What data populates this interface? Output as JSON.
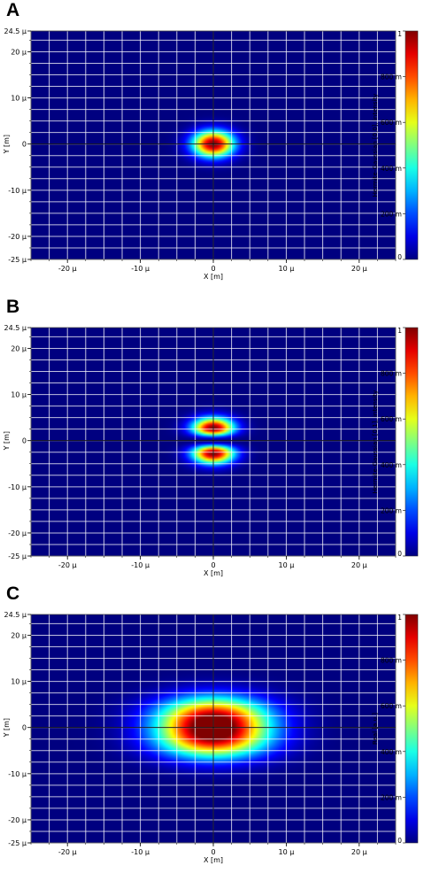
{
  "panels": [
    "A",
    "B",
    "C"
  ],
  "chart_data": [
    {
      "type": "heatmap",
      "panel": "A",
      "mode": "HG00",
      "xlabel": "X [m]",
      "ylabel": "Y [m]",
      "colorbar_label": "Hermite-Gaussian [0,0], intensity",
      "xlim": [
        -25,
        25
      ],
      "ylim": [
        -25,
        24.5
      ],
      "xticks": [
        {
          "v": -20,
          "label": "-20 µ"
        },
        {
          "v": -10,
          "label": "-10 µ"
        },
        {
          "v": 0,
          "label": "0"
        },
        {
          "v": 10,
          "label": "10 µ"
        },
        {
          "v": 20,
          "label": "20 µ"
        }
      ],
      "yticks": [
        {
          "v": 24.5,
          "label": "24.5 µ"
        },
        {
          "v": 20,
          "label": "20 µ"
        },
        {
          "v": 10,
          "label": "10 µ"
        },
        {
          "v": 0,
          "label": "0"
        },
        {
          "v": -10,
          "label": "-10 µ"
        },
        {
          "v": -20,
          "label": "-20 µ"
        },
        {
          "v": -25,
          "label": "-25 µ"
        }
      ],
      "colorbar_ticks": [
        {
          "v": 1,
          "label": "1"
        },
        {
          "v": 0.8,
          "label": "800 m"
        },
        {
          "v": 0.6,
          "label": "600 m"
        },
        {
          "v": 0.4,
          "label": "400 m"
        },
        {
          "v": 0.2,
          "label": "200 m"
        },
        {
          "v": 0,
          "label": "0"
        }
      ],
      "colormap": "jet",
      "grid": true,
      "beam_center": [
        0,
        0
      ],
      "beam_waist": 2.8,
      "peak_value": 1
    },
    {
      "type": "heatmap",
      "panel": "B",
      "mode": "HG01",
      "xlabel": "X [m]",
      "ylabel": "Y [m]",
      "colorbar_label": "Hermite-Gaussian [0,1], intensity",
      "xlim": [
        -25,
        25
      ],
      "ylim": [
        -25,
        24.5
      ],
      "xticks": [
        {
          "v": -20,
          "label": "-20 µ"
        },
        {
          "v": -10,
          "label": "-10 µ"
        },
        {
          "v": 0,
          "label": "0"
        },
        {
          "v": 10,
          "label": "10 µ"
        },
        {
          "v": 20,
          "label": "20 µ"
        }
      ],
      "yticks": [
        {
          "v": 24.5,
          "label": "24.5 µ"
        },
        {
          "v": 20,
          "label": "20 µ"
        },
        {
          "v": 10,
          "label": "10 µ"
        },
        {
          "v": 0,
          "label": "0"
        },
        {
          "v": -10,
          "label": "-10 µ"
        },
        {
          "v": -20,
          "label": "-20 µ"
        },
        {
          "v": -25,
          "label": "-25 µ"
        }
      ],
      "colorbar_ticks": [
        {
          "v": 1,
          "label": "1"
        },
        {
          "v": 0.8,
          "label": "800 m"
        },
        {
          "v": 0.6,
          "label": "600 m"
        },
        {
          "v": 0.4,
          "label": "400 m"
        },
        {
          "v": 0.2,
          "label": "200 m"
        },
        {
          "v": 0,
          "label": "0"
        }
      ],
      "colormap": "jet",
      "grid": true,
      "beam_center": [
        0,
        0
      ],
      "beam_waist": 2.8,
      "lobe_centers_y": [
        3.5,
        -3.5
      ],
      "peak_value": 1
    },
    {
      "type": "heatmap",
      "panel": "C",
      "mode": "superposition",
      "xlabel": "X [m]",
      "ylabel": "Y [m]",
      "colorbar_label": "Real [a.u.]",
      "xlim": [
        -25,
        25
      ],
      "ylim": [
        -25,
        24.5
      ],
      "xticks": [
        {
          "v": -20,
          "label": "-20 µ"
        },
        {
          "v": -10,
          "label": "-10 µ"
        },
        {
          "v": 0,
          "label": "0"
        },
        {
          "v": 10,
          "label": "10 µ"
        },
        {
          "v": 20,
          "label": "20 µ"
        }
      ],
      "yticks": [
        {
          "v": 24.5,
          "label": "24.5 µ"
        },
        {
          "v": 20,
          "label": "20 µ"
        },
        {
          "v": 10,
          "label": "10 µ"
        },
        {
          "v": 0,
          "label": "0"
        },
        {
          "v": -10,
          "label": "-10 µ"
        },
        {
          "v": -20,
          "label": "-20 µ"
        },
        {
          "v": -25,
          "label": "-25 µ"
        }
      ],
      "colorbar_ticks": [
        {
          "v": 1,
          "label": "1"
        },
        {
          "v": 0.8,
          "label": "800 m"
        },
        {
          "v": 0.6,
          "label": "600 m"
        },
        {
          "v": 0.4,
          "label": "400 m"
        },
        {
          "v": 0.2,
          "label": "200 m"
        },
        {
          "v": 0,
          "label": "0"
        }
      ],
      "colormap": "jet",
      "grid": true,
      "beam_center": [
        0,
        0
      ],
      "beam_waist": 5.5,
      "lobe_centers_y": [
        2.5,
        -2.5
      ],
      "peak_value": 1
    }
  ]
}
